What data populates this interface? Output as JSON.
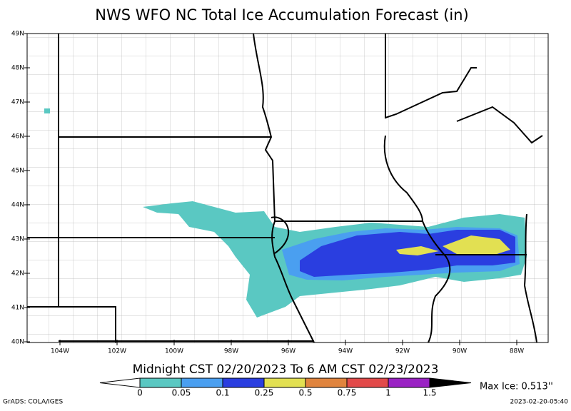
{
  "title": "NWS WFO NC Total Ice Accumulation Forecast (in)",
  "map": {
    "lat_labels": [
      "49N",
      "48N",
      "47N",
      "46N",
      "45N",
      "44N",
      "43N",
      "42N",
      "41N",
      "40N"
    ],
    "lon_labels": [
      "104W",
      "102W",
      "100W",
      "98W",
      "96W",
      "94W",
      "92W",
      "90W",
      "88W"
    ]
  },
  "subtitle": "Midnight CST 02/20/2023 To 6 AM CST 02/23/2023",
  "colorbar": {
    "levels": [
      0,
      0.05,
      0.1,
      0.25,
      0.5,
      0.75,
      1,
      1.5
    ],
    "colors": [
      "#ffffff",
      "#5ac8c2",
      "#4a9ff0",
      "#2a3ee0",
      "#e2e052",
      "#e0843e",
      "#e24a4a",
      "#9a22c4",
      "#000000"
    ]
  },
  "max_ice": "Max Ice: 0.513''",
  "credit": "GrADS: COLA/IGES",
  "timestamp": "2023-02-20-05:40"
}
